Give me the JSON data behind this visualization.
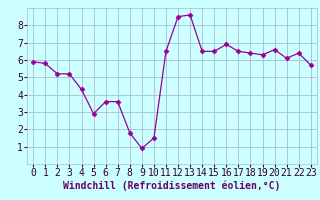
{
  "x": [
    0,
    1,
    2,
    3,
    4,
    5,
    6,
    7,
    8,
    9,
    10,
    11,
    12,
    13,
    14,
    15,
    16,
    17,
    18,
    19,
    20,
    21,
    22,
    23
  ],
  "y": [
    5.9,
    5.8,
    5.2,
    5.2,
    4.3,
    2.9,
    3.6,
    3.6,
    1.8,
    0.9,
    1.5,
    6.5,
    8.5,
    8.6,
    6.5,
    6.5,
    6.9,
    6.5,
    6.4,
    6.3,
    6.6,
    6.1,
    6.4,
    5.7
  ],
  "line_color": "#990099",
  "marker": "D",
  "marker_size": 2.5,
  "bg_color": "#ccffff",
  "grid_color": "#aabbcc",
  "xlabel": "Windchill (Refroidissement éolien,°C)",
  "xlabel_color": "#660066",
  "xlabel_fontsize": 7,
  "tick_fontsize": 7,
  "ylim": [
    0,
    9
  ],
  "xlim": [
    -0.5,
    23.5
  ],
  "yticks": [
    1,
    2,
    3,
    4,
    5,
    6,
    7,
    8
  ],
  "xticks": [
    0,
    1,
    2,
    3,
    4,
    5,
    6,
    7,
    8,
    9,
    10,
    11,
    12,
    13,
    14,
    15,
    16,
    17,
    18,
    19,
    20,
    21,
    22,
    23
  ]
}
